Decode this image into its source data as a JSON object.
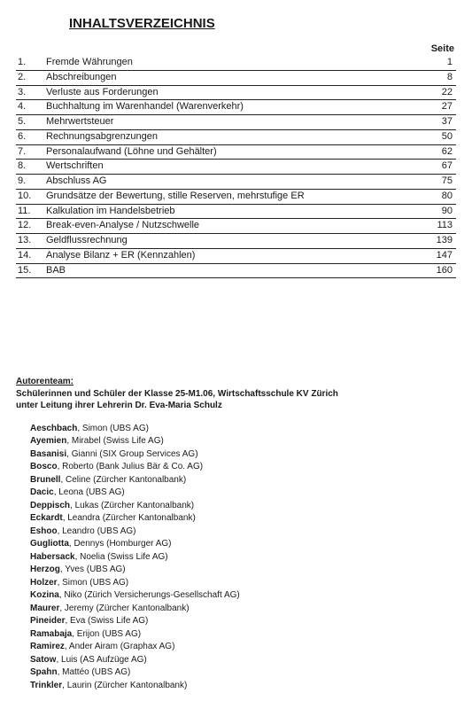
{
  "title": "INHALTSVERZEICHNIS",
  "page_label": "Seite",
  "toc": [
    {
      "n": "1.",
      "t": "Fremde Währungen",
      "p": "1"
    },
    {
      "n": "2.",
      "t": "Abschreibungen",
      "p": "8"
    },
    {
      "n": "3.",
      "t": "Verluste aus Forderungen",
      "p": "22"
    },
    {
      "n": "4.",
      "t": "Buchhaltung im Warenhandel (Warenverkehr)",
      "p": "27"
    },
    {
      "n": "5.",
      "t": "Mehrwertsteuer",
      "p": "37"
    },
    {
      "n": "6.",
      "t": "Rechnungsabgrenzungen",
      "p": "50"
    },
    {
      "n": "7.",
      "t": "Personalaufwand (Löhne und Gehälter)",
      "p": "62"
    },
    {
      "n": "8.",
      "t": "Wertschriften",
      "p": "67"
    },
    {
      "n": "9.",
      "t": "Abschluss AG",
      "p": "75"
    },
    {
      "n": "10.",
      "t": "Grundsätze der Bewertung, stille Reserven, mehrstufige ER",
      "p": "80"
    },
    {
      "n": "11.",
      "t": "Kalkulation im Handelsbetrieb",
      "p": "90"
    },
    {
      "n": "12.",
      "t": "Break-even-Analyse / Nutzschwelle",
      "p": "113"
    },
    {
      "n": "13.",
      "t": "Geldflussrechnung",
      "p": "139"
    },
    {
      "n": "14.",
      "t": "Analyse Bilanz + ER (Kennzahlen)",
      "p": "147"
    },
    {
      "n": "15.",
      "t": "BAB",
      "p": "160"
    }
  ],
  "authors_heading": "Autorenteam:",
  "authors_sub1": "Schülerinnen und Schüler der Klasse 25-M1.06, Wirtschaftsschule KV Zürich",
  "authors_sub2": "unter Leitung ihrer Lehrerin Dr. Eva-Maria Schulz",
  "authors": [
    {
      "s": "Aeschbach",
      "r": ", Simon (UBS AG)"
    },
    {
      "s": "Ayemien",
      "r": ", Mirabel (Swiss Life AG)"
    },
    {
      "s": "Basanisi",
      "r": ", Gianni (SIX Group Services AG)"
    },
    {
      "s": "Bosco",
      "r": ", Roberto (Bank Julius Bär & Co. AG)"
    },
    {
      "s": "Brunell",
      "r": ", Celine (Zürcher Kantonalbank)"
    },
    {
      "s": "Dacic",
      "r": ", Leona (UBS AG)"
    },
    {
      "s": "Deppisch",
      "r": ", Lukas (Zürcher Kantonalbank)"
    },
    {
      "s": "Eckardt",
      "r": ", Leandra (Zürcher Kantonalbank)"
    },
    {
      "s": "Eshoo",
      "r": ", Leandro (UBS AG)"
    },
    {
      "s": "Gugliotta",
      "r": ", Dennys (Homburger AG)"
    },
    {
      "s": "Habersack",
      "r": ", Noelia (Swiss Life AG)"
    },
    {
      "s": "Herzog",
      "r": ", Yves (UBS AG)"
    },
    {
      "s": "Holzer",
      "r": ", Simon (UBS AG)"
    },
    {
      "s": "Kozina",
      "r": ", Niko (Zürich Versicherungs-Gesellschaft AG)"
    },
    {
      "s": "Maurer",
      "r": ", Jeremy (Zürcher Kantonalbank)"
    },
    {
      "s": "Pineider",
      "r": ", Eva (Swiss Life AG)"
    },
    {
      "s": "Ramabaja",
      "r": ", Erijon (UBS AG)"
    },
    {
      "s": "Ramirez",
      "r": ", Ander Airam (Graphax AG)"
    },
    {
      "s": "Satow",
      "r": ", Luis (AS Aufzüge AG)"
    },
    {
      "s": "Spahn",
      "r": ", Mattéo (UBS AG)"
    },
    {
      "s": "Trinkler",
      "r": ", Laurin (Zürcher Kantonalbank)"
    }
  ]
}
